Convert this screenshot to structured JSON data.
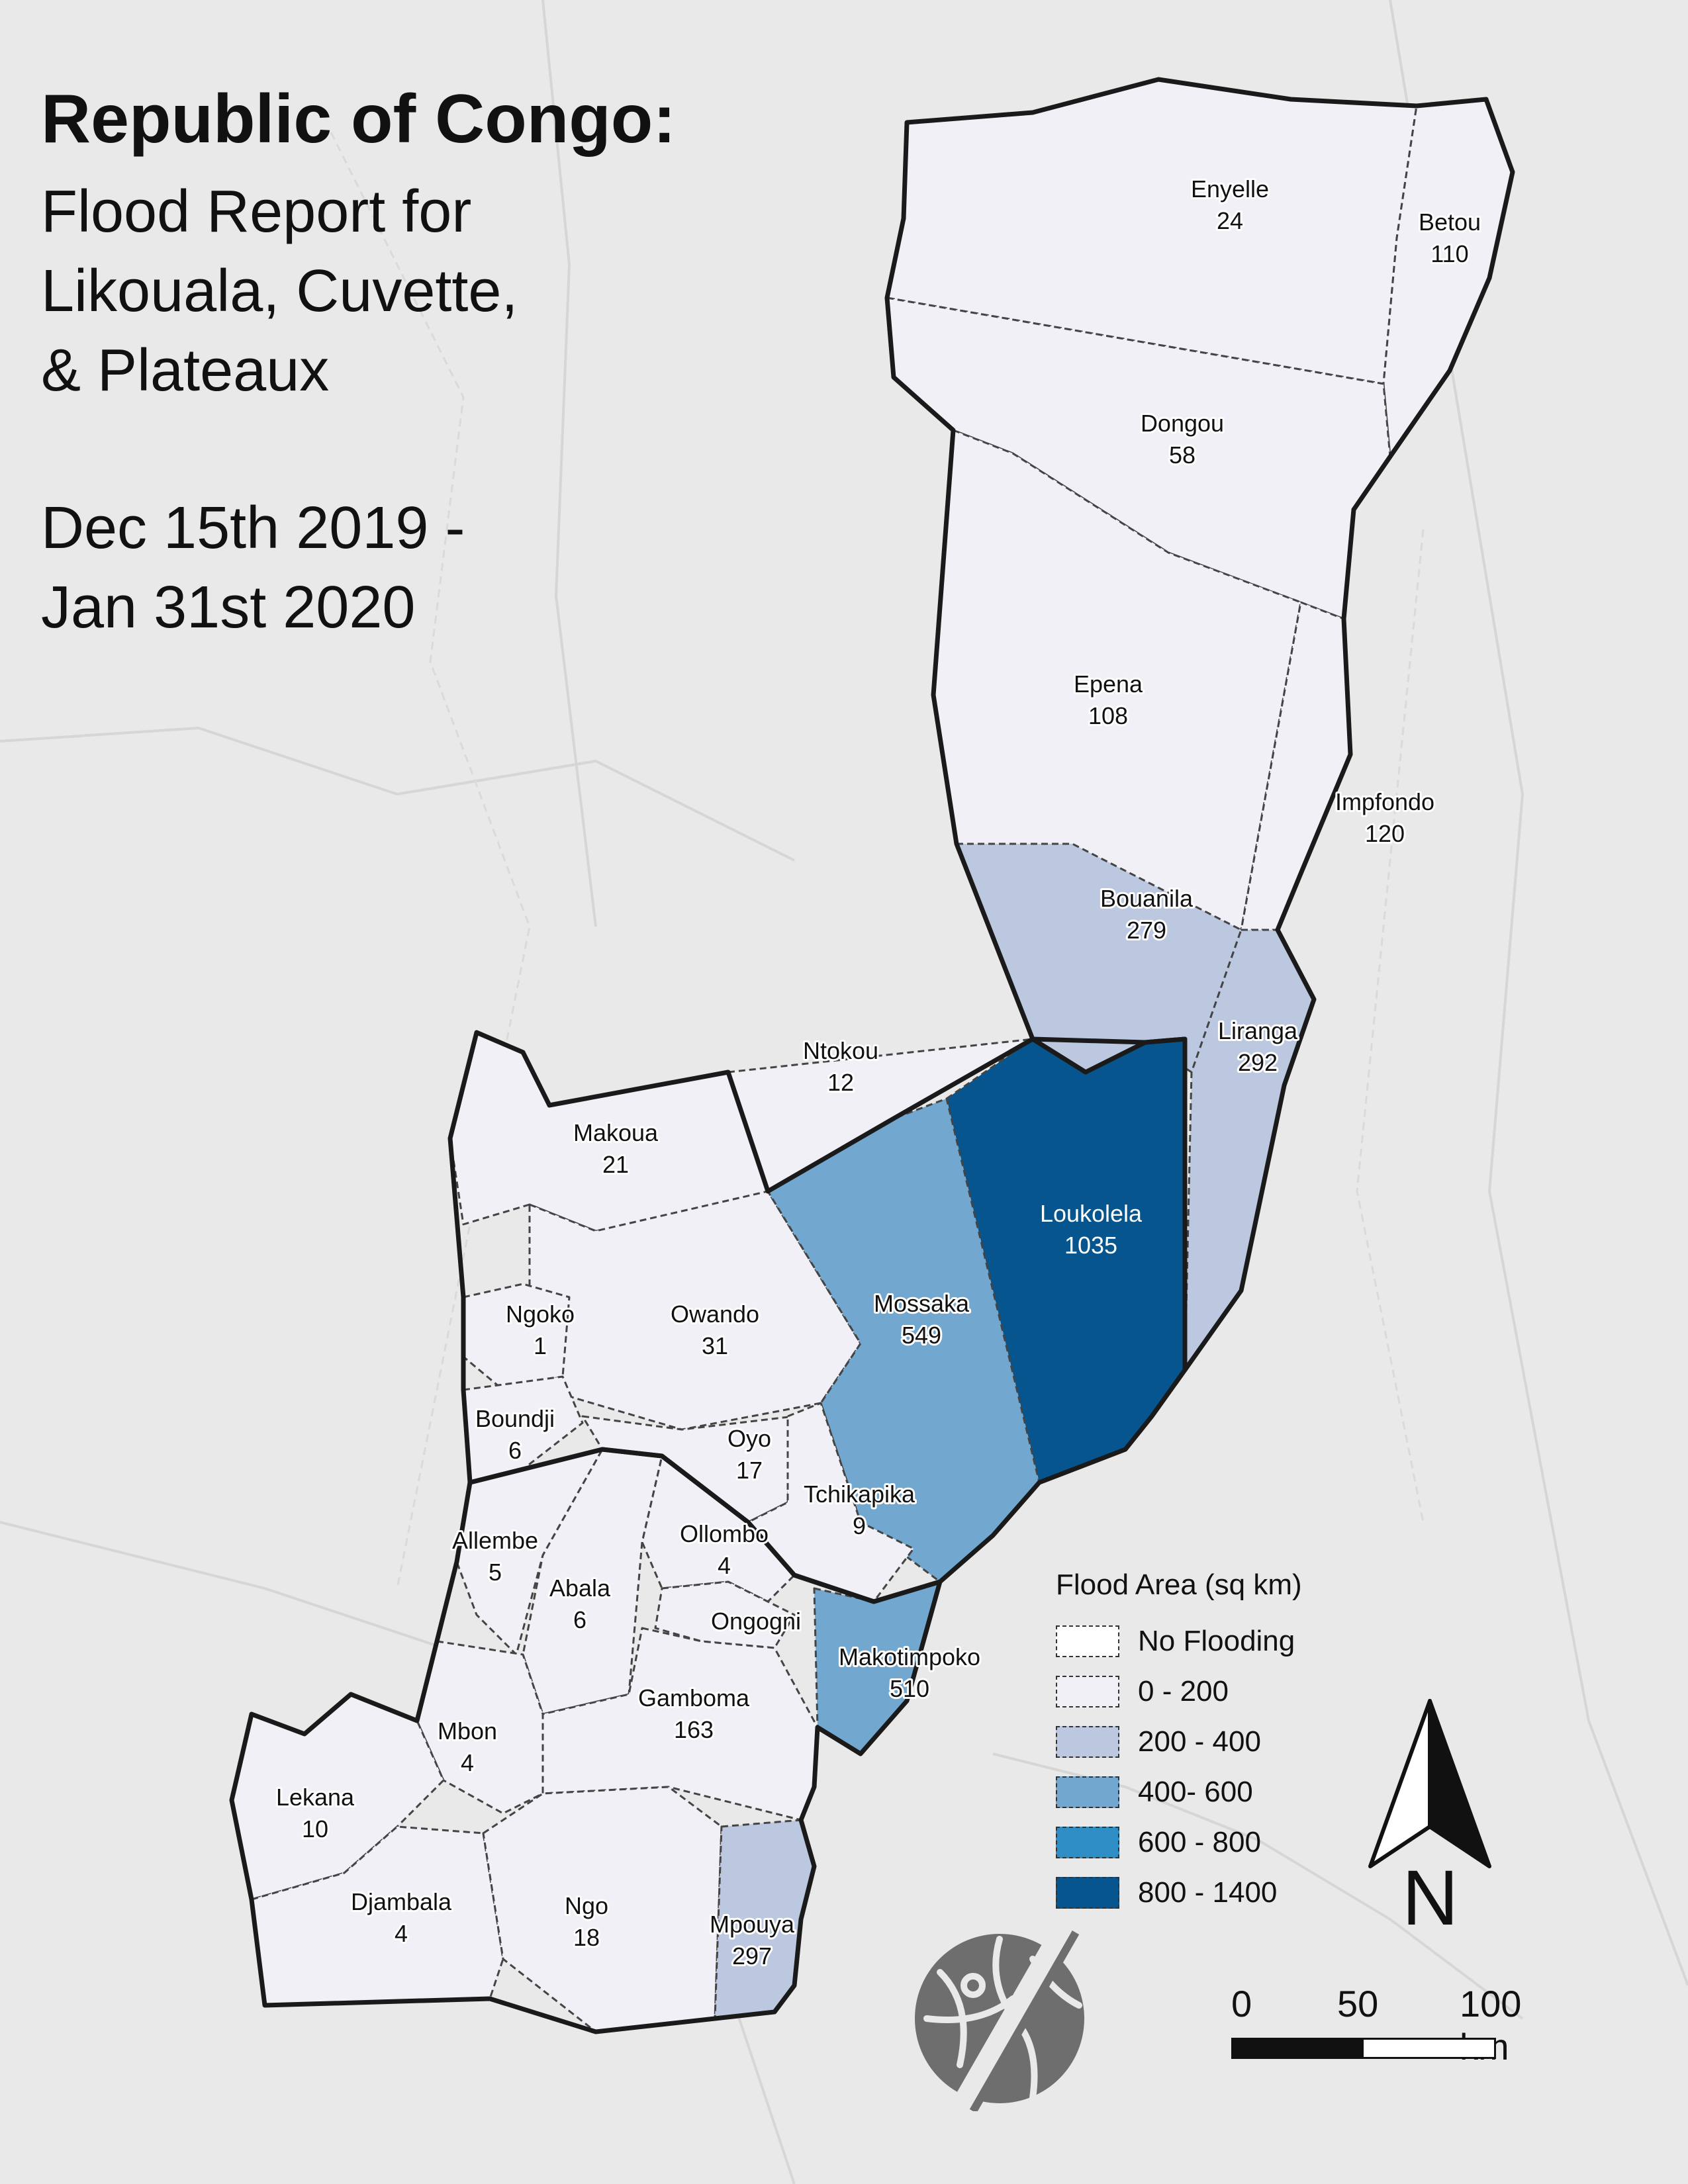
{
  "title": "Republic of Congo:",
  "subtitle_lines": [
    "Flood Report for",
    "Likouala, Cuvette,",
    "& Plateaux"
  ],
  "date_lines": [
    "Dec 15th 2019 -",
    "Jan 31st 2020"
  ],
  "colors": {
    "no_flooding": "#ffffff",
    "range_0_200": "#f0f0f6",
    "range_200_400": "#bcc8e0",
    "range_400_600": "#72a8d0",
    "range_600_800": "#2f8ec6",
    "range_800_1400": "#06558e",
    "outline": "#1a1a1a",
    "basemap": "#e9e9e9"
  },
  "legend": {
    "title": "Flood Area (sq km)",
    "items": [
      {
        "label": "No Flooding",
        "color": "#ffffff"
      },
      {
        "label": "0 - 200",
        "color": "#f0f0f6"
      },
      {
        "label": "200 - 400",
        "color": "#bcc8e0"
      },
      {
        "label": "400- 600",
        "color": "#72a8d0"
      },
      {
        "label": "600 - 800",
        "color": "#2f8ec6"
      },
      {
        "label": "800 - 1400",
        "color": "#06558e"
      }
    ]
  },
  "districts": [
    {
      "name": "Enyelle",
      "value": "24"
    },
    {
      "name": "Betou",
      "value": "110"
    },
    {
      "name": "Dongou",
      "value": "58"
    },
    {
      "name": "Epena",
      "value": "108"
    },
    {
      "name": "Impfondo",
      "value": "120"
    },
    {
      "name": "Bouanila",
      "value": "279"
    },
    {
      "name": "Liranga",
      "value": "292"
    },
    {
      "name": "Ntokou",
      "value": "12"
    },
    {
      "name": "Makoua",
      "value": "21"
    },
    {
      "name": "Loukolela",
      "value": "1035"
    },
    {
      "name": "Owando",
      "value": "31"
    },
    {
      "name": "Ngoko",
      "value": "1"
    },
    {
      "name": "Mossaka",
      "value": "549"
    },
    {
      "name": "Boundji",
      "value": "6"
    },
    {
      "name": "Oyo",
      "value": "17"
    },
    {
      "name": "Tchikapika",
      "value": "9"
    },
    {
      "name": "Allembe",
      "value": "5"
    },
    {
      "name": "Ollombo",
      "value": "4"
    },
    {
      "name": "Abala",
      "value": "6"
    },
    {
      "name": "Ongogni",
      "value": ""
    },
    {
      "name": "Makotimpoko",
      "value": "510"
    },
    {
      "name": "Gamboma",
      "value": "163"
    },
    {
      "name": "Mbon",
      "value": "4"
    },
    {
      "name": "Lekana",
      "value": "10"
    },
    {
      "name": "Djambala",
      "value": "4"
    },
    {
      "name": "Ngo",
      "value": "18"
    },
    {
      "name": "Mpouya",
      "value": "297"
    }
  ],
  "scale": {
    "labels": [
      "0",
      "50",
      "100 km"
    ]
  },
  "north_label": "N"
}
